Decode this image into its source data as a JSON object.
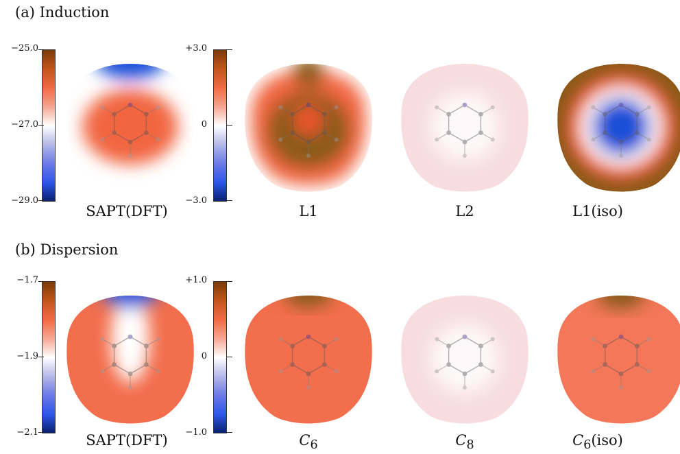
{
  "colors": {
    "red": "#f0552e",
    "dark_orange": "#8a5a1a",
    "blue": "#1f4fd8",
    "white": "#ffffff",
    "pink": "#f7dde0"
  },
  "sections": [
    {
      "title": "(a) Induction",
      "colorbars": [
        {
          "max": "−25.0",
          "mid": "−27.0",
          "min": "−29.0"
        },
        {
          "max": "+3.0",
          "mid": "0",
          "min": "−3.0"
        }
      ],
      "panels": [
        {
          "label": "SAPT(DFT)",
          "pattern": "sapt_ind"
        },
        {
          "label": "L1",
          "pattern": "l1"
        },
        {
          "label": "L2",
          "pattern": "light"
        },
        {
          "label": "L1(iso)",
          "pattern": "l1iso"
        }
      ]
    },
    {
      "title": "(b) Dispersion",
      "colorbars": [
        {
          "max": "−1.7",
          "mid": "−1.9",
          "min": "−2.1"
        },
        {
          "max": "+1.0",
          "mid": "0",
          "min": "−1.0"
        }
      ],
      "panels": [
        {
          "label": "SAPT(DFT)",
          "pattern": "sapt_disp"
        },
        {
          "label": "C6",
          "base": "C",
          "sub": "6",
          "suffix": "",
          "pattern": "red"
        },
        {
          "label": "C8",
          "base": "C",
          "sub": "8",
          "suffix": "",
          "pattern": "light"
        },
        {
          "label": "C6(iso)",
          "base": "C",
          "sub": "6",
          "suffix": "(iso)",
          "pattern": "red_top"
        }
      ]
    }
  ]
}
